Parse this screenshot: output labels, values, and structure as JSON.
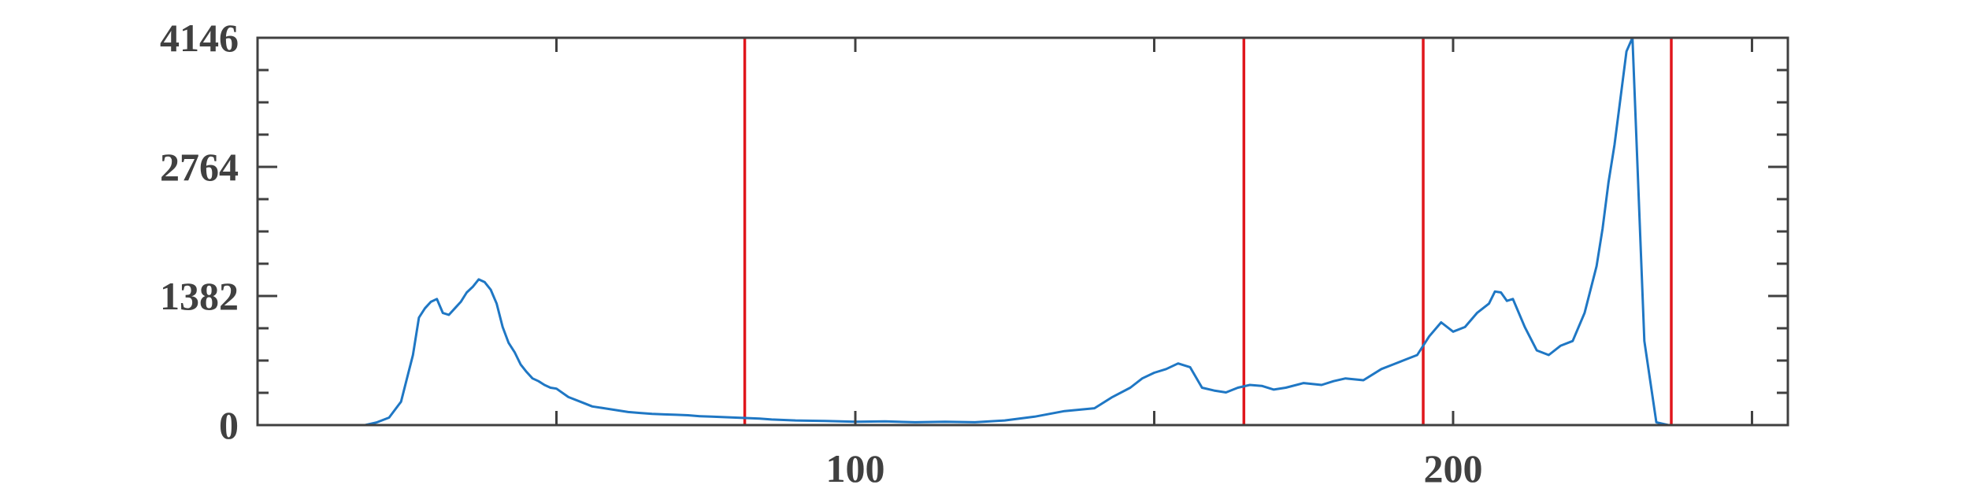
{
  "chart_data": {
    "type": "line",
    "title": "",
    "xlabel": "",
    "ylabel": "",
    "xlim": [
      0,
      256
    ],
    "ylim": [
      0,
      4146
    ],
    "x_ticks": [
      100,
      200
    ],
    "x_tick_labels": [
      "100",
      "200"
    ],
    "y_ticks": [
      0,
      1382,
      2764,
      4146
    ],
    "y_tick_labels": [
      "0",
      "1382",
      "2764",
      "4146"
    ],
    "grid": false,
    "legend": "none",
    "series": [
      {
        "color": "#1f77c4",
        "x": [
          0,
          18,
          20,
          22,
          24,
          25,
          26,
          27,
          28,
          29,
          30,
          31,
          32,
          33,
          34,
          35,
          36,
          37,
          38,
          39,
          40,
          41,
          42,
          43,
          44,
          45,
          46,
          47,
          48,
          49,
          50,
          52,
          54,
          56,
          58,
          60,
          62,
          64,
          66,
          68,
          70,
          72,
          74,
          76,
          78,
          80,
          82,
          84,
          86,
          88,
          90,
          95,
          100,
          105,
          110,
          115,
          120,
          125,
          130,
          135,
          140,
          143,
          146,
          148,
          150,
          152,
          154,
          156,
          158,
          160,
          162,
          164,
          166,
          168,
          170,
          172,
          175,
          178,
          180,
          182,
          185,
          188,
          190,
          192,
          194,
          196,
          198,
          200,
          202,
          204,
          206,
          207,
          208,
          209,
          210,
          212,
          214,
          216,
          218,
          220,
          222,
          224,
          225,
          226,
          227,
          228,
          229,
          230,
          232,
          234,
          236,
          240,
          256
        ],
        "y": [
          0,
          0,
          30,
          80,
          250,
          500,
          750,
          1150,
          1250,
          1320,
          1350,
          1200,
          1180,
          1250,
          1320,
          1420,
          1480,
          1560,
          1530,
          1450,
          1300,
          1050,
          880,
          780,
          650,
          570,
          500,
          470,
          430,
          400,
          390,
          300,
          250,
          200,
          180,
          160,
          140,
          130,
          120,
          115,
          110,
          105,
          95,
          90,
          85,
          80,
          75,
          70,
          60,
          55,
          50,
          45,
          35,
          40,
          30,
          35,
          30,
          50,
          90,
          150,
          180,
          300,
          400,
          500,
          560,
          600,
          660,
          620,
          400,
          370,
          350,
          400,
          430,
          420,
          380,
          400,
          450,
          430,
          470,
          500,
          480,
          600,
          650,
          700,
          750,
          950,
          1100,
          1000,
          1050,
          1200,
          1300,
          1430,
          1420,
          1330,
          1350,
          1050,
          800,
          750,
          850,
          900,
          1200,
          1700,
          2100,
          2600,
          3000,
          3500,
          4000,
          4146,
          900,
          30,
          0,
          0,
          0
        ]
      }
    ],
    "markers": {
      "color": "#e0161c",
      "x": [
        81.5,
        165,
        195,
        236.5
      ]
    }
  }
}
